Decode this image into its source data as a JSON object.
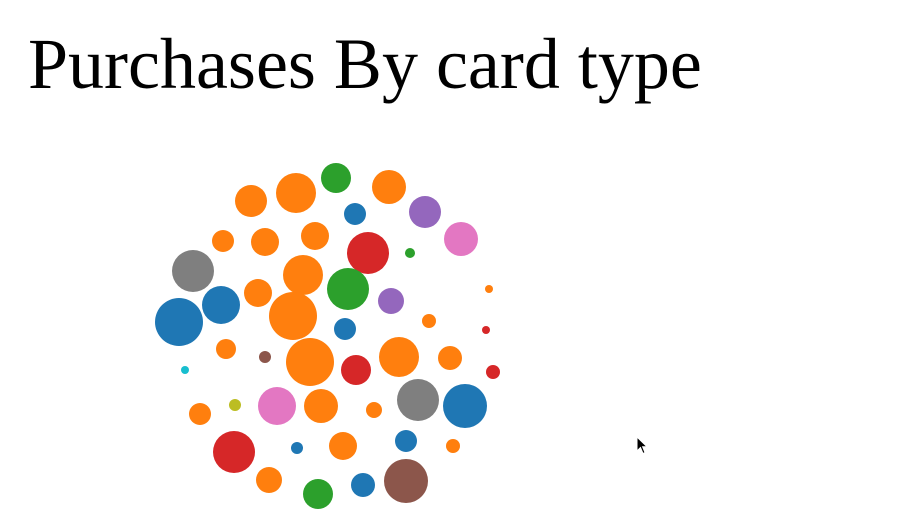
{
  "title": "Purchases By card type",
  "colors": {
    "orange": "#ff7f0e",
    "blue": "#1f77b4",
    "green": "#2ca02c",
    "red": "#d62728",
    "purple": "#9467bd",
    "brown": "#8c564b",
    "pink": "#e377c2",
    "gray": "#7f7f7f",
    "olive": "#bcbd22",
    "cyan": "#17becf"
  },
  "chart_data": {
    "type": "bubble",
    "title": "Purchases By card type",
    "bubbles": [
      {
        "color": "orange",
        "size": 16
      },
      {
        "color": "orange",
        "size": 20
      },
      {
        "color": "green",
        "size": 15
      },
      {
        "color": "orange",
        "size": 17
      },
      {
        "color": "blue",
        "size": 11
      },
      {
        "color": "purple",
        "size": 16
      },
      {
        "color": "orange",
        "size": 11
      },
      {
        "color": "orange",
        "size": 14
      },
      {
        "color": "orange",
        "size": 14
      },
      {
        "color": "red",
        "size": 21
      },
      {
        "color": "green",
        "size": 5
      },
      {
        "color": "pink",
        "size": 17
      },
      {
        "color": "gray",
        "size": 21
      },
      {
        "color": "orange",
        "size": 20
      },
      {
        "color": "orange",
        "size": 14
      },
      {
        "color": "green",
        "size": 21
      },
      {
        "color": "blue",
        "size": 19
      },
      {
        "color": "purple",
        "size": 13
      },
      {
        "color": "orange",
        "size": 4
      },
      {
        "color": "blue",
        "size": 24
      },
      {
        "color": "orange",
        "size": 24
      },
      {
        "color": "blue",
        "size": 11
      },
      {
        "color": "orange",
        "size": 7
      },
      {
        "color": "red",
        "size": 4
      },
      {
        "color": "orange",
        "size": 10
      },
      {
        "color": "brown",
        "size": 6
      },
      {
        "color": "orange",
        "size": 24
      },
      {
        "color": "red",
        "size": 15
      },
      {
        "color": "orange",
        "size": 20
      },
      {
        "color": "orange",
        "size": 12
      },
      {
        "color": "cyan",
        "size": 4
      },
      {
        "color": "red",
        "size": 7
      },
      {
        "color": "orange",
        "size": 11
      },
      {
        "color": "olive",
        "size": 6
      },
      {
        "color": "pink",
        "size": 19
      },
      {
        "color": "orange",
        "size": 17
      },
      {
        "color": "orange",
        "size": 8
      },
      {
        "color": "gray",
        "size": 21
      },
      {
        "color": "blue",
        "size": 22
      },
      {
        "color": "red",
        "size": 21
      },
      {
        "color": "blue",
        "size": 6
      },
      {
        "color": "orange",
        "size": 14
      },
      {
        "color": "blue",
        "size": 11
      },
      {
        "color": "orange",
        "size": 7
      },
      {
        "color": "orange",
        "size": 13
      },
      {
        "color": "green",
        "size": 15
      },
      {
        "color": "blue",
        "size": 12
      },
      {
        "color": "brown",
        "size": 22
      }
    ]
  }
}
